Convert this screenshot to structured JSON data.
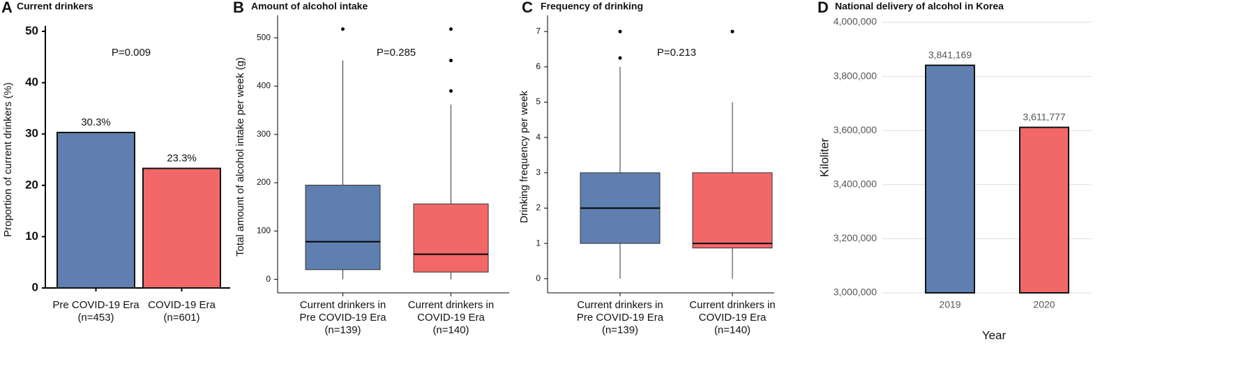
{
  "chart_data": [
    {
      "type": "bar",
      "panel": "A",
      "title": "Current drinkers",
      "categories": [
        [
          "Pre COVID-19 Era",
          "(n=453)"
        ],
        [
          "COVID-19 Era",
          "(n=601)"
        ]
      ],
      "values": [
        30.3,
        23.3
      ],
      "value_labels": [
        "30.3%",
        "23.3%"
      ],
      "colors": [
        "#5f7fb0",
        "#f26868"
      ],
      "ylabel": "Proportion of current drinkers (%)",
      "ylim": [
        0,
        50
      ],
      "yticks": [
        0,
        10,
        20,
        30,
        40,
        50
      ],
      "grid": false,
      "annotation": "P=0.009"
    },
    {
      "type": "box",
      "panel": "B",
      "title": "Amount of alcohol intake",
      "categories": [
        [
          "Current drinkers in",
          "Pre COVID-19 Era",
          "(n=139)"
        ],
        [
          "Current drinkers in",
          "COVID-19 Era",
          "(n=140)"
        ]
      ],
      "boxes": [
        {
          "min": 0,
          "q1": 20,
          "median": 78,
          "q3": 195,
          "max": 453,
          "outliers": [
            518
          ]
        },
        {
          "min": 0,
          "q1": 15,
          "median": 52,
          "q3": 156,
          "max": 362,
          "outliers": [
            390,
            453,
            518
          ]
        }
      ],
      "colors": [
        "#5f7fb0",
        "#f26868"
      ],
      "ylabel": "Total amount of alcohol intake per week (g)",
      "ylim": [
        -28,
        535
      ],
      "yticks": [
        0,
        100,
        200,
        300,
        400,
        500
      ],
      "grid": false,
      "annotation": "P=0.285"
    },
    {
      "type": "box",
      "panel": "C",
      "title": "Frequency of drinking",
      "categories": [
        [
          "Current drinkers in",
          "Pre COVID-19 Era",
          "(n=139)"
        ],
        [
          "Current drinkers in",
          "COVID-19 Era",
          "(n=140)"
        ]
      ],
      "boxes": [
        {
          "min": 0,
          "q1": 1,
          "median": 2,
          "q3": 3,
          "max": 6,
          "outliers": [
            6.25,
            7
          ]
        },
        {
          "min": 0,
          "q1": 0.87,
          "median": 1,
          "q3": 3,
          "max": 5,
          "outliers": [
            7
          ]
        }
      ],
      "colors": [
        "#5f7fb0",
        "#f26868"
      ],
      "ylabel": "Drinking frequency per week",
      "ylim": [
        -0.4,
        7.3
      ],
      "yticks": [
        0,
        1,
        2,
        3,
        4,
        5,
        6,
        7
      ],
      "grid": false,
      "annotation": "P=0.213"
    },
    {
      "type": "bar",
      "panel": "D",
      "title": "National delivery of alcohol in Korea",
      "categories": [
        "2019",
        "2020"
      ],
      "values": [
        3841169,
        3611777
      ],
      "value_labels": [
        "3,841,169",
        "3,611,777"
      ],
      "colors": [
        "#5f7fb0",
        "#f26868"
      ],
      "ylabel": "Kiloliter",
      "xlabel": "Year",
      "ylim": [
        3000000,
        4000000
      ],
      "yticks": [
        {
          "value": 3000000,
          "label": "3,000,000"
        },
        {
          "value": 3200000,
          "label": "3,200,000"
        },
        {
          "value": 3400000,
          "label": "3,400,000"
        },
        {
          "value": 3600000,
          "label": "3,600,000"
        },
        {
          "value": 3800000,
          "label": "3,800,000"
        },
        {
          "value": 4000000,
          "label": "4,000,000"
        }
      ],
      "grid": true
    }
  ]
}
